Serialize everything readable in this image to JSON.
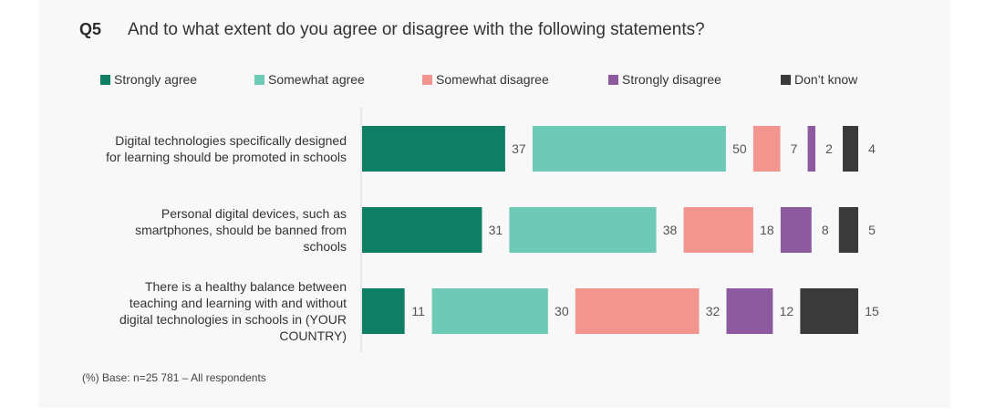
{
  "question": {
    "number": "Q5",
    "text": "And to what extent do you agree or disagree with the following statements?"
  },
  "legend": [
    {
      "label": "Strongly agree",
      "color": "#0e7f65"
    },
    {
      "label": "Somewhat agree",
      "color": "#6ec9b7"
    },
    {
      "label": "Somewhat disagree",
      "color": "#f2958f"
    },
    {
      "label": "Strongly disagree",
      "color": "#8e5a9f"
    },
    {
      "label": "Don’t know",
      "color": "#3a3a3a"
    }
  ],
  "chart_data": {
    "type": "bar",
    "orientation": "horizontal",
    "stacked": "segmented",
    "categories": [
      "Digital technologies specifically designed for learning should be promoted in schools",
      "Personal digital devices, such as smartphones, should be banned from schools",
      "There is a healthy balance between teaching and learning with and without digital technologies in schools in (YOUR COUNTRY)"
    ],
    "category_lines": [
      [
        "Digital technologies specifically designed",
        "for learning should be promoted in schools"
      ],
      [
        "Personal digital devices, such as",
        "smartphones, should be banned from",
        "schools"
      ],
      [
        "There is a healthy balance between",
        "teaching and learning with and without",
        "digital technologies in schools in (YOUR",
        "COUNTRY)"
      ]
    ],
    "series": [
      {
        "name": "Strongly agree",
        "values": [
          37,
          31,
          11
        ]
      },
      {
        "name": "Somewhat agree",
        "values": [
          50,
          38,
          30
        ]
      },
      {
        "name": "Somewhat disagree",
        "values": [
          7,
          18,
          32
        ]
      },
      {
        "name": "Strongly disagree",
        "values": [
          2,
          8,
          12
        ]
      },
      {
        "name": "Don’t know",
        "values": [
          4,
          5,
          15
        ]
      }
    ],
    "unit": "%",
    "legend_position": "top"
  },
  "footnote": "(%) Base: n=25 781 – All respondents"
}
